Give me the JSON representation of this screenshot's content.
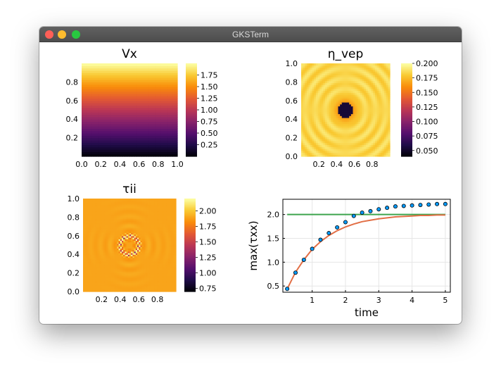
{
  "window": {
    "title": "GKSTerm"
  },
  "chart_data": [
    {
      "type": "heatmap",
      "title": "Vx",
      "colormap": "inferno",
      "xticks": [
        "0.0",
        "0.2",
        "0.4",
        "0.6",
        "0.8",
        "1.0"
      ],
      "yticks": [
        "0.2",
        "0.4",
        "0.6",
        "0.8"
      ],
      "xlim": [
        0,
        1
      ],
      "ylim": [
        0,
        1
      ],
      "clim": [
        0,
        2
      ],
      "colorbar_ticks": [
        "0.25",
        "0.50",
        "0.75",
        "1.00",
        "1.25",
        "1.50",
        "1.75"
      ],
      "field": "linear gradient in y: value ≈ 2·y"
    },
    {
      "type": "heatmap",
      "title": "η_vep",
      "colormap": "inferno",
      "xticks": [
        "0.2",
        "0.4",
        "0.6",
        "0.8"
      ],
      "yticks": [
        "0.0",
        "0.2",
        "0.4",
        "0.6",
        "0.8",
        "1.0"
      ],
      "xlim": [
        0,
        1
      ],
      "ylim": [
        0,
        1
      ],
      "clim": [
        0.04,
        0.2
      ],
      "colorbar_ticks": [
        "0.050",
        "0.075",
        "0.100",
        "0.125",
        "0.150",
        "0.175",
        "0.200"
      ],
      "field": "background 0.2 with a weak inclusion (≈0.06) centred at (0.5, 0.5)"
    },
    {
      "type": "heatmap",
      "title": "τii",
      "colormap": "inferno",
      "xticks": [
        "0.2",
        "0.4",
        "0.6",
        "0.8"
      ],
      "yticks": [
        "0.0",
        "0.2",
        "0.4",
        "0.6",
        "0.8",
        "1.0"
      ],
      "xlim": [
        0,
        1
      ],
      "ylim": [
        0,
        1
      ],
      "clim": [
        0.7,
        2.2
      ],
      "colorbar_ticks": [
        "0.75",
        "1.00",
        "1.25",
        "1.50",
        "1.75",
        "2.00"
      ],
      "field": "background ≈1.95 with stress concentrations around the inclusion at (0.5, 0.5)"
    },
    {
      "type": "line",
      "xlabel": "time",
      "ylabel": "max(τxx)",
      "xlim": [
        0.12,
        5.15
      ],
      "ylim": [
        0.37,
        2.32
      ],
      "xticks": [
        "1",
        "2",
        "3",
        "4",
        "5"
      ],
      "yticks": [
        "0.5",
        "1.0",
        "1.5",
        "2.0"
      ],
      "grid": true,
      "series": [
        {
          "style": "scatter",
          "color": "#009AFA",
          "x": [
            0.25,
            0.5,
            0.75,
            1.0,
            1.25,
            1.5,
            1.75,
            2.0,
            2.25,
            2.5,
            2.75,
            3.0,
            3.25,
            3.5,
            3.75,
            4.0,
            4.25,
            4.5,
            4.75,
            5.0
          ],
          "y": [
            0.44,
            0.78,
            1.05,
            1.28,
            1.47,
            1.61,
            1.73,
            1.84,
            1.97,
            2.04,
            2.07,
            2.11,
            2.14,
            2.17,
            2.18,
            2.19,
            2.2,
            2.21,
            2.22,
            2.22
          ]
        },
        {
          "style": "line",
          "color": "#3DA44D",
          "x": [
            0.25,
            5.0
          ],
          "y": [
            2.0,
            2.0
          ]
        },
        {
          "style": "line",
          "color": "#E26F46",
          "x": [
            0.25,
            0.5,
            0.75,
            1.0,
            1.25,
            1.5,
            1.75,
            2.0,
            2.25,
            2.5,
            2.75,
            3.0,
            3.25,
            3.5,
            3.75,
            4.0,
            4.25,
            4.5,
            4.75,
            5.0
          ],
          "y": [
            0.44,
            0.79,
            1.05,
            1.27,
            1.43,
            1.56,
            1.66,
            1.74,
            1.8,
            1.85,
            1.88,
            1.91,
            1.93,
            1.95,
            1.96,
            1.97,
            1.98,
            1.98,
            1.99,
            1.99
          ]
        }
      ]
    }
  ]
}
